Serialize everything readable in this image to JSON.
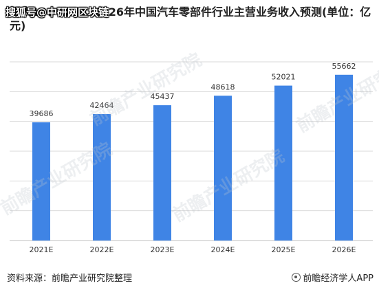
{
  "overlay_text": "搜狐号@中研网区块链",
  "title": "图表13：2021-2026年中国汽车零部件行业主营业务收入预测(单位：亿元)",
  "watermark": "前瞻产业研究院",
  "footer": {
    "source": "资料来源：前瞻产业研究院整理",
    "brand": "前瞻经济学人APP"
  },
  "colors": {
    "bar": "#3F84E5",
    "grid": "#D9D9D9",
    "axis": "#BFBFBF"
  },
  "chart_data": {
    "type": "bar",
    "title": "图表13：2021-2026年中国汽车零部件行业主营业务收入预测(单位：亿元)",
    "categories": [
      "2021E",
      "2022E",
      "2023E",
      "2024E",
      "2025E",
      "2026E"
    ],
    "values": [
      39686,
      42464,
      45437,
      48618,
      52021,
      55662
    ],
    "xlabel": "",
    "ylabel": "",
    "ylim": [
      0,
      60000
    ],
    "grid": true,
    "legend": "none"
  }
}
